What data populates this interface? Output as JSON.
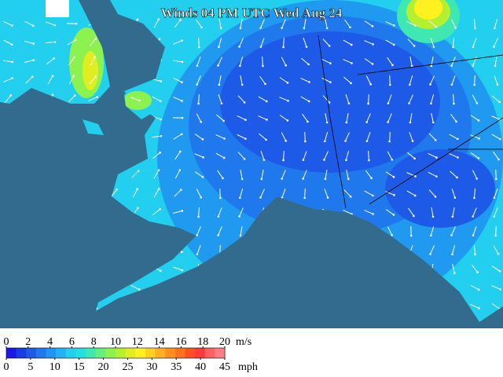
{
  "title": "Winds 04 PM UTC Wed Aug 24",
  "legend": {
    "ms_unit": "m/s",
    "ms_ticks": [
      0,
      2,
      4,
      6,
      8,
      10,
      12,
      14,
      16,
      18,
      20
    ],
    "ms_lim": [
      0,
      20
    ],
    "mph_unit": "mph",
    "mph_ticks": [
      0,
      5,
      10,
      15,
      20,
      25,
      30,
      35,
      40,
      45
    ],
    "mph_lim": [
      0,
      45
    ],
    "colors": [
      "#1a1ae6",
      "#1a3ce6",
      "#1e5ae8",
      "#1f78ec",
      "#2196f0",
      "#22b4f2",
      "#22cfee",
      "#22e0e0",
      "#3fe8b0",
      "#66ee80",
      "#8cf250",
      "#b4f030",
      "#e0ee20",
      "#fff020",
      "#ffd020",
      "#ffb020",
      "#ff9020",
      "#ff7020",
      "#ff5020",
      "#ff3a3a",
      "#ff6060",
      "#ff8080"
    ]
  }
}
